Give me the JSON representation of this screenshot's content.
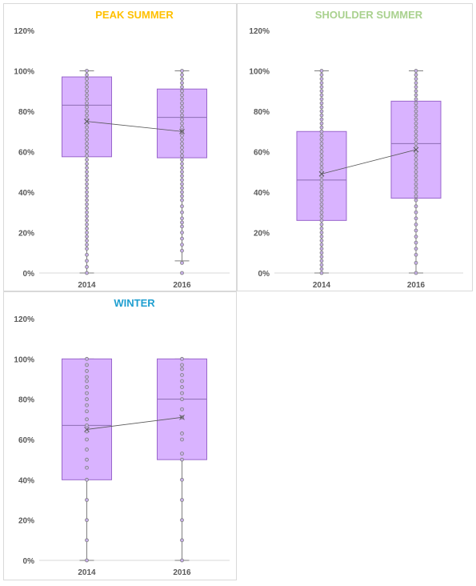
{
  "chart_data": [
    {
      "type": "box",
      "title": "PEAK SUMMER",
      "title_color": "#ffc000",
      "categories": [
        "2014",
        "2016"
      ],
      "ylim": [
        0,
        120
      ],
      "yticks": [
        "0%",
        "20%",
        "40%",
        "60%",
        "80%",
        "100%",
        "120%"
      ],
      "box_color": "#d9b3ff",
      "box_stroke": "#9966cc",
      "boxes": [
        {
          "label": "2014",
          "min": 0,
          "q1": 57.5,
          "median": 83,
          "mean": 75,
          "q3": 97,
          "max": 100,
          "points": [
            0,
            3,
            6,
            9,
            12,
            14,
            16,
            18,
            20,
            22,
            24,
            26,
            28,
            30,
            32,
            34,
            36,
            38,
            40,
            42,
            44,
            46,
            48,
            50,
            52,
            54,
            56,
            58,
            60,
            62,
            64,
            66,
            68,
            70,
            72,
            74,
            76,
            78,
            80,
            82,
            84,
            86,
            88,
            90,
            92,
            94,
            96,
            98,
            100
          ]
        },
        {
          "label": "2016",
          "min": 6,
          "q1": 57,
          "median": 77,
          "mean": 70,
          "q3": 91,
          "max": 100,
          "points": [
            0,
            5,
            11,
            14,
            17,
            20,
            23,
            25,
            27,
            30,
            33,
            36,
            38,
            40,
            42,
            44,
            46,
            48,
            50,
            52,
            54,
            56,
            58,
            60,
            62,
            64,
            66,
            68,
            70,
            72,
            74,
            76,
            78,
            80,
            82,
            84,
            86,
            88,
            90,
            92,
            94,
            96,
            98,
            100
          ]
        }
      ]
    },
    {
      "type": "box",
      "title": "SHOULDER SUMMER",
      "title_color": "#a9d18e",
      "categories": [
        "2014",
        "2016"
      ],
      "ylim": [
        0,
        120
      ],
      "yticks": [
        "0%",
        "20%",
        "40%",
        "60%",
        "80%",
        "100%",
        "120%"
      ],
      "box_color": "#d9b3ff",
      "box_stroke": "#9966cc",
      "boxes": [
        {
          "label": "2014",
          "min": 0,
          "q1": 26,
          "median": 46,
          "mean": 49,
          "q3": 70,
          "max": 100,
          "points": [
            0,
            2,
            4,
            6,
            8,
            10,
            12,
            14,
            16,
            18,
            20,
            22,
            24,
            26,
            28,
            30,
            32,
            34,
            36,
            38,
            40,
            42,
            44,
            46,
            48,
            50,
            52,
            54,
            56,
            58,
            60,
            62,
            64,
            66,
            68,
            70,
            72,
            74,
            76,
            78,
            80,
            82,
            84,
            86,
            88,
            90,
            92,
            94,
            96,
            98,
            100
          ]
        },
        {
          "label": "2016",
          "min": 0,
          "q1": 37,
          "median": 64,
          "mean": 61,
          "q3": 85,
          "max": 100,
          "points": [
            0,
            5,
            9,
            12,
            15,
            18,
            21,
            24,
            27,
            30,
            33,
            36,
            38,
            40,
            42,
            44,
            46,
            48,
            50,
            52,
            54,
            56,
            58,
            60,
            62,
            64,
            66,
            68,
            70,
            72,
            74,
            76,
            78,
            80,
            82,
            84,
            86,
            88,
            90,
            92,
            94,
            96,
            98,
            100
          ]
        }
      ]
    },
    {
      "type": "box",
      "title": "WINTER",
      "title_color": "#1f9fd0",
      "categories": [
        "2014",
        "2016"
      ],
      "ylim": [
        0,
        120
      ],
      "yticks": [
        "0%",
        "20%",
        "40%",
        "60%",
        "80%",
        "100%",
        "120%"
      ],
      "box_color": "#d9b3ff",
      "box_stroke": "#9966cc",
      "boxes": [
        {
          "label": "2014",
          "min": 0,
          "q1": 40,
          "median": 67,
          "mean": 65,
          "q3": 100,
          "max": 100,
          "points": [
            0,
            10,
            20,
            30,
            40,
            46,
            50,
            55,
            60,
            64,
            67,
            70,
            74,
            77,
            80,
            83,
            86,
            89,
            91,
            94,
            97,
            100
          ]
        },
        {
          "label": "2016",
          "min": 0,
          "q1": 50,
          "median": 80,
          "mean": 71,
          "q3": 100,
          "max": 100,
          "points": [
            0,
            10,
            20,
            30,
            40,
            50,
            53,
            60,
            63,
            71,
            75,
            80,
            83,
            86,
            89,
            92,
            95,
            97,
            100
          ]
        }
      ]
    }
  ]
}
